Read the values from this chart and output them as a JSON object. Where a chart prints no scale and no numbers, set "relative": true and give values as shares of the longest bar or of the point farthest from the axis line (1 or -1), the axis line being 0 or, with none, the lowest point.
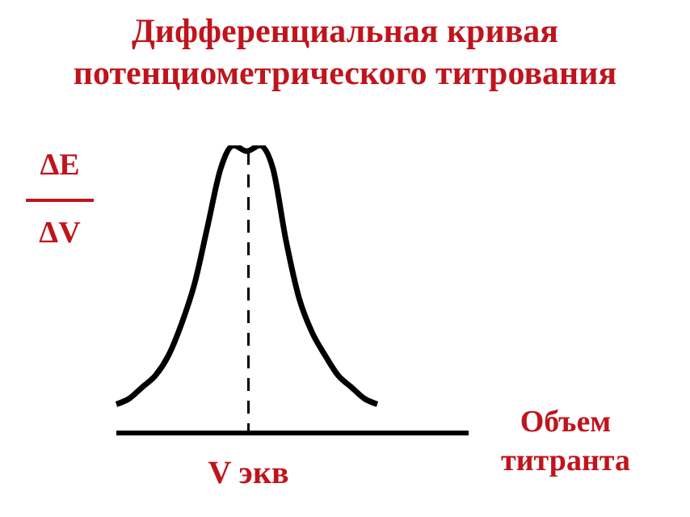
{
  "chart_data": {
    "type": "line",
    "title": "Дифференциальная кривая\nпотенциометрического титрования",
    "xlabel": "Объем\nтитранта",
    "ylabel": "ΔE\nΔV",
    "annotations": [
      "V экв"
    ],
    "relative": true,
    "marker": "none",
    "line_style": "solid",
    "categories": [
      null,
      null,
      null,
      null,
      null,
      null,
      null,
      null,
      null,
      null,
      null,
      null,
      null,
      null,
      null,
      null,
      null,
      null,
      null,
      null,
      null,
      null,
      null,
      null,
      null,
      null,
      null,
      null
    ],
    "series": [
      {
        "color": "#000000",
        "values": [
          0.1,
          0.12,
          0.16,
          0.2,
          0.27,
          0.38,
          0.52,
          0.72,
          0.92,
          1,
          0.98,
          1,
          0.92,
          0.67,
          0.47,
          0.35,
          0.27,
          0.2,
          0.16,
          0.12,
          0.1,
          null,
          null,
          null,
          null,
          null,
          null,
          null
        ]
      }
    ]
  }
}
